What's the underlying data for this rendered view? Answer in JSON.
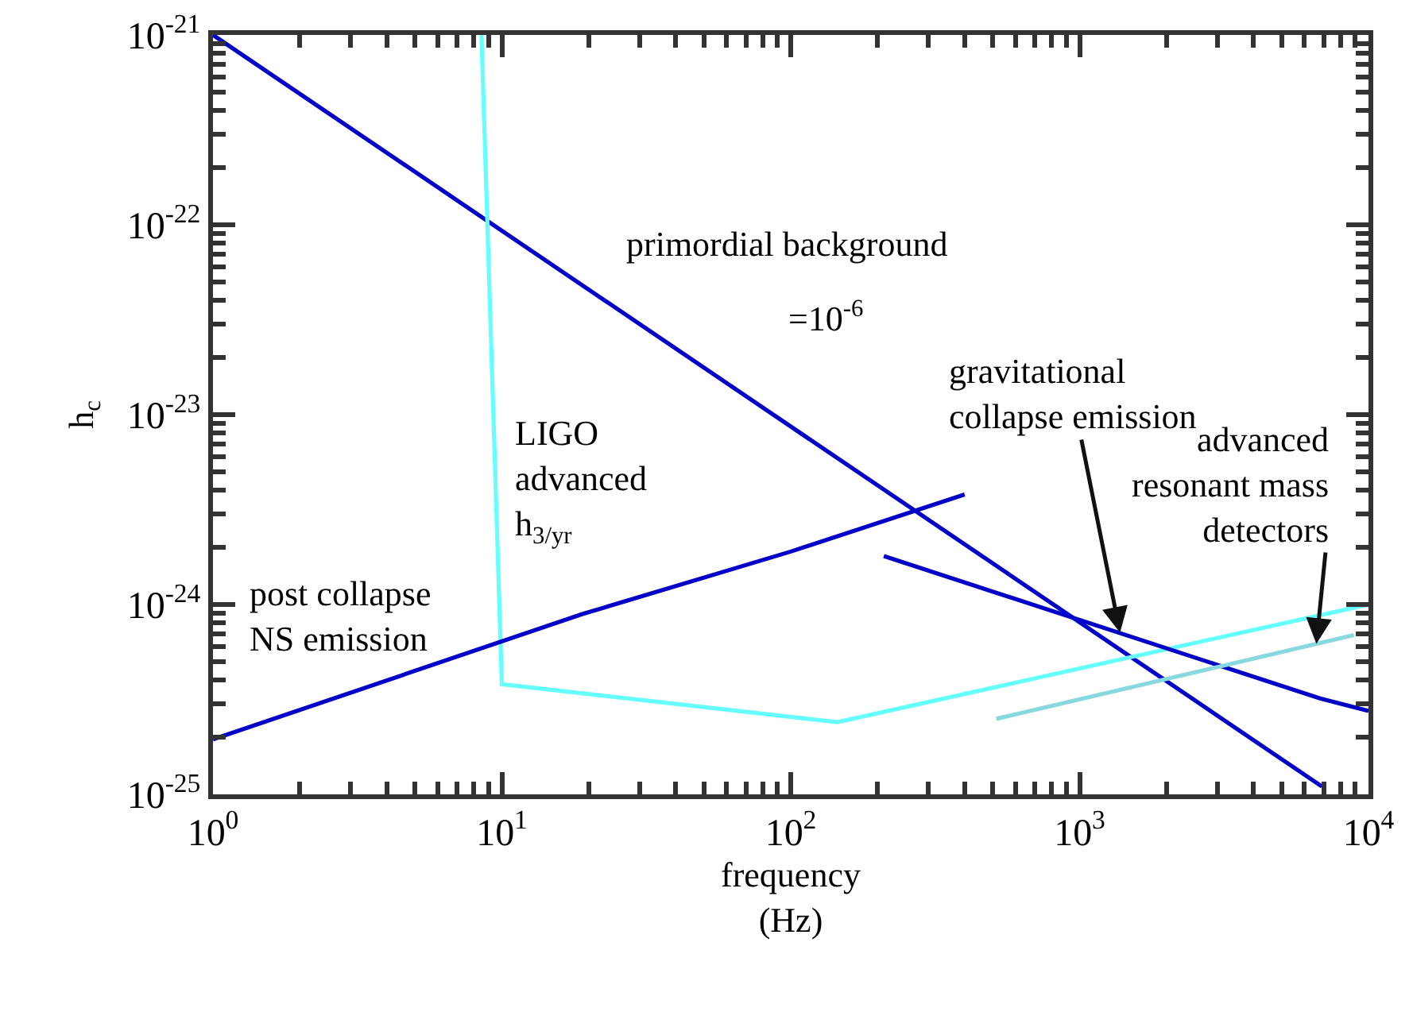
{
  "chart_data": {
    "type": "line",
    "xlabel": "frequency\n(Hz)",
    "ylabel": "h$_{c}$",
    "log": "xy",
    "marker": "none",
    "line_style": "solid",
    "xlim": [
      1,
      10000
    ],
    "ylim": [
      1e-25,
      1e-21
    ],
    "xticks": [
      {
        "value": 1,
        "label": "10$^{0}$"
      },
      {
        "value": 2,
        "label": null
      },
      {
        "value": 3,
        "label": null
      },
      {
        "value": 4,
        "label": null
      },
      {
        "value": 5,
        "label": null
      },
      {
        "value": 6,
        "label": null
      },
      {
        "value": 7,
        "label": null
      },
      {
        "value": 8,
        "label": null
      },
      {
        "value": 9,
        "label": null
      },
      {
        "value": 10,
        "label": "10$^{1}$"
      },
      {
        "value": 20,
        "label": null
      },
      {
        "value": 30,
        "label": null
      },
      {
        "value": 40,
        "label": null
      },
      {
        "value": 50,
        "label": null
      },
      {
        "value": 60,
        "label": null
      },
      {
        "value": 70,
        "label": null
      },
      {
        "value": 80,
        "label": null
      },
      {
        "value": 90,
        "label": null
      },
      {
        "value": 100,
        "label": "10$^{2}$"
      },
      {
        "value": 200,
        "label": null
      },
      {
        "value": 300,
        "label": null
      },
      {
        "value": 400,
        "label": null
      },
      {
        "value": 500,
        "label": null
      },
      {
        "value": 600,
        "label": null
      },
      {
        "value": 700,
        "label": null
      },
      {
        "value": 800,
        "label": null
      },
      {
        "value": 900,
        "label": null
      },
      {
        "value": 1000,
        "label": "10$^{3}$"
      },
      {
        "value": 2000,
        "label": null
      },
      {
        "value": 3000,
        "label": null
      },
      {
        "value": 4000,
        "label": null
      },
      {
        "value": 5000,
        "label": null
      },
      {
        "value": 6000,
        "label": null
      },
      {
        "value": 7000,
        "label": null
      },
      {
        "value": 8000,
        "label": null
      },
      {
        "value": 9000,
        "label": null
      },
      {
        "value": 10000,
        "label": "10$^{4}$"
      }
    ],
    "yticks": [
      {
        "value": 1e-25,
        "label": "10$^{-25}$"
      },
      {
        "value": 2e-25,
        "label": null
      },
      {
        "value": 3e-25,
        "label": null
      },
      {
        "value": 4e-25,
        "label": null
      },
      {
        "value": 5e-25,
        "label": null
      },
      {
        "value": 6e-25,
        "label": null
      },
      {
        "value": 7e-25,
        "label": null
      },
      {
        "value": 8e-25,
        "label": null
      },
      {
        "value": 9e-25,
        "label": null
      },
      {
        "value": 1e-24,
        "label": "10$^{-24}$"
      },
      {
        "value": 2e-24,
        "label": null
      },
      {
        "value": 3e-24,
        "label": null
      },
      {
        "value": 4e-24,
        "label": null
      },
      {
        "value": 5e-24,
        "label": null
      },
      {
        "value": 6e-24,
        "label": null
      },
      {
        "value": 7e-24,
        "label": null
      },
      {
        "value": 8e-24,
        "label": null
      },
      {
        "value": 9e-24,
        "label": null
      },
      {
        "value": 1e-23,
        "label": "10$^{-23}$"
      },
      {
        "value": 2e-23,
        "label": null
      },
      {
        "value": 3e-23,
        "label": null
      },
      {
        "value": 4e-23,
        "label": null
      },
      {
        "value": 5e-23,
        "label": null
      },
      {
        "value": 6e-23,
        "label": null
      },
      {
        "value": 7e-23,
        "label": null
      },
      {
        "value": 8e-23,
        "label": null
      },
      {
        "value": 9e-23,
        "label": null
      },
      {
        "value": 1e-22,
        "label": "10$^{-22}$"
      },
      {
        "value": 2e-22,
        "label": null
      },
      {
        "value": 3e-22,
        "label": null
      },
      {
        "value": 4e-22,
        "label": null
      },
      {
        "value": 5e-22,
        "label": null
      },
      {
        "value": 6e-22,
        "label": null
      },
      {
        "value": 7e-22,
        "label": null
      },
      {
        "value": 8e-22,
        "label": null
      },
      {
        "value": 9e-22,
        "label": null
      },
      {
        "value": 1e-21,
        "label": "10$^{-21}$"
      }
    ],
    "series": [
      {
        "color": "#0000c8",
        "x": [
          1,
          6900
        ],
        "values": [
          1e-21,
          1.1e-25
        ]
      },
      {
        "color": "#66ffff",
        "x": [
          8.5,
          10,
          145,
          10000
        ],
        "values": [
          1e-21,
          3.8e-25,
          2.4e-25,
          1e-24
        ]
      },
      {
        "color": "#0000c8",
        "x": [
          1,
          19,
          100,
          400
        ],
        "values": [
          1.95e-25,
          8.9e-25,
          1.9e-24,
          3.8e-24
        ]
      },
      {
        "color": "#0000c8",
        "x": [
          210,
          6800,
          10000
        ],
        "values": [
          1.8e-24,
          3.2e-25,
          2.75e-25
        ]
      },
      {
        "color": "#88d8e0",
        "x": [
          515,
          8900
        ],
        "values": [
          2.5e-25,
          6.9e-25
        ]
      }
    ],
    "annotations": [
      "primordial background",
      "=10$^{-6}$",
      "LIGO\nadvanced\nh$_{3/yr}$",
      "post collapse\nNS emission",
      {
        "text": "gravitational\ncollapse emission",
        "x": 1380,
        "y": 7.1e-25
      },
      {
        "text": "advanced\nresonant mass\ndetectors",
        "x": 6600,
        "y": 6.2e-25
      }
    ]
  }
}
